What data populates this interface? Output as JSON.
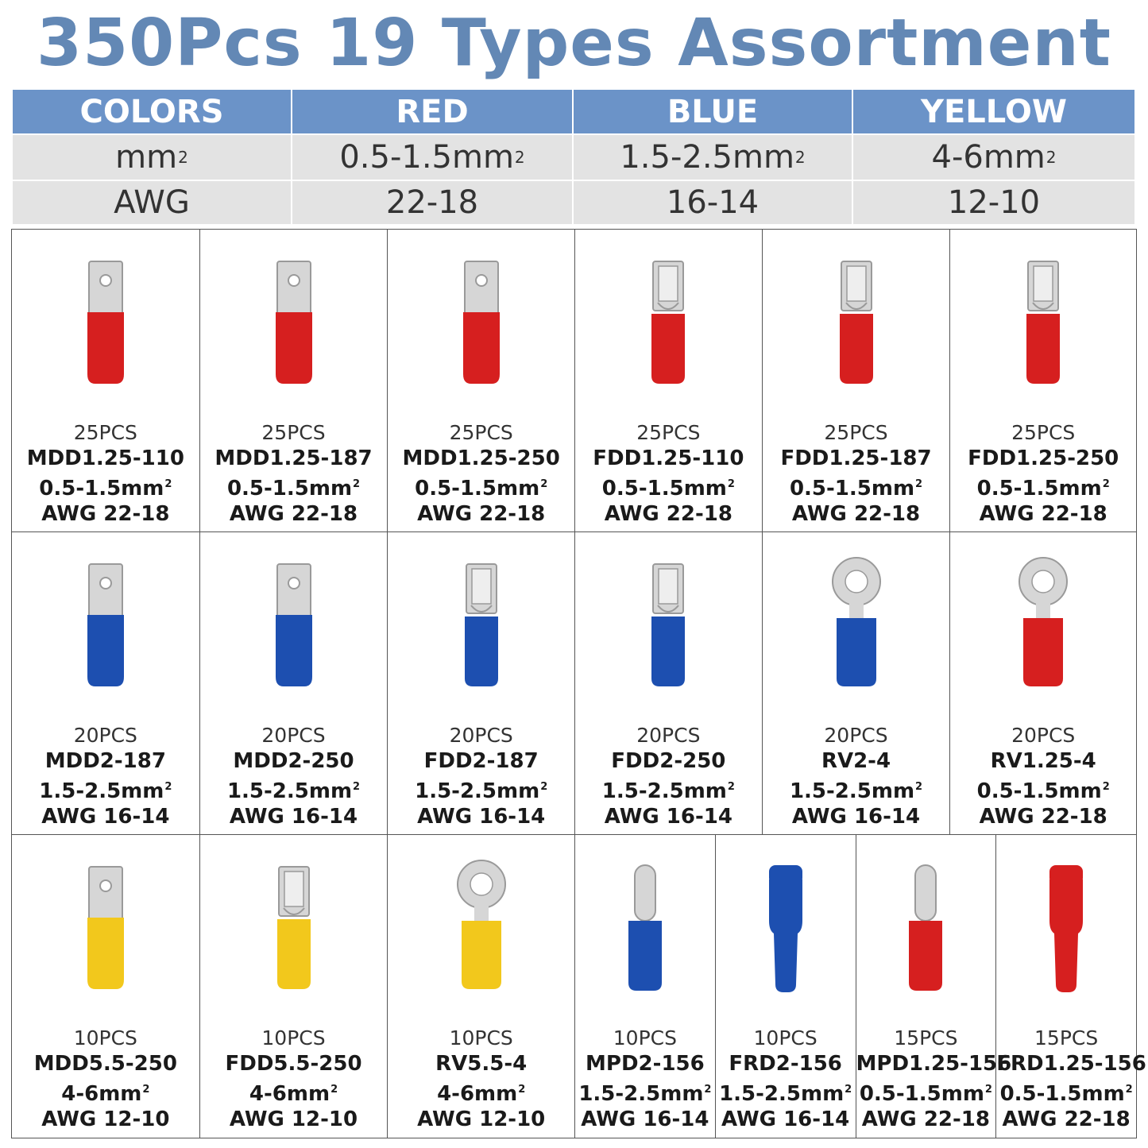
{
  "title": "350Pcs 19 Types Assortment",
  "colors": {
    "red": "#d61f1f",
    "blue": "#1d4fb0",
    "yellow": "#f2c81c",
    "header": "#6b93c8",
    "title": "#6388b5"
  },
  "spec_table": {
    "header": [
      "COLORS",
      "RED",
      "BLUE",
      "YELLOW"
    ],
    "mm_row": {
      "label": "mm",
      "values": [
        "0.5-1.5mm",
        "1.5-2.5mm",
        "4-6mm"
      ]
    },
    "awg_row": {
      "label": "AWG",
      "values": [
        "22-18",
        "16-14",
        "12-10"
      ]
    },
    "superscript": "2"
  },
  "terminals": [
    [
      {
        "qty": "25PCS",
        "model": "MDD1.25-110",
        "range": "0.5-1.5mm",
        "awg": "AWG 22-18",
        "shape": "male-spade",
        "color": "red"
      },
      {
        "qty": "25PCS",
        "model": "MDD1.25-187",
        "range": "0.5-1.5mm",
        "awg": "AWG 22-18",
        "shape": "male-spade",
        "color": "red"
      },
      {
        "qty": "25PCS",
        "model": "MDD1.25-250",
        "range": "0.5-1.5mm",
        "awg": "AWG 22-18",
        "shape": "male-spade",
        "color": "red"
      },
      {
        "qty": "25PCS",
        "model": "FDD1.25-110",
        "range": "0.5-1.5mm",
        "awg": "AWG 22-18",
        "shape": "female-spade",
        "color": "red"
      },
      {
        "qty": "25PCS",
        "model": "FDD1.25-187",
        "range": "0.5-1.5mm",
        "awg": "AWG 22-18",
        "shape": "female-spade",
        "color": "red"
      },
      {
        "qty": "25PCS",
        "model": "FDD1.25-250",
        "range": "0.5-1.5mm",
        "awg": "AWG 22-18",
        "shape": "female-spade",
        "color": "red"
      }
    ],
    [
      {
        "qty": "20PCS",
        "model": "MDD2-187",
        "range": "1.5-2.5mm",
        "awg": "AWG 16-14",
        "shape": "male-spade",
        "color": "blue"
      },
      {
        "qty": "20PCS",
        "model": "MDD2-250",
        "range": "1.5-2.5mm",
        "awg": "AWG 16-14",
        "shape": "male-spade",
        "color": "blue"
      },
      {
        "qty": "20PCS",
        "model": "FDD2-187",
        "range": "1.5-2.5mm",
        "awg": "AWG 16-14",
        "shape": "female-spade",
        "color": "blue"
      },
      {
        "qty": "20PCS",
        "model": "FDD2-250",
        "range": "1.5-2.5mm",
        "awg": "AWG 16-14",
        "shape": "female-spade",
        "color": "blue"
      },
      {
        "qty": "20PCS",
        "model": "RV2-4",
        "range": "1.5-2.5mm",
        "awg": "AWG 16-14",
        "shape": "ring",
        "color": "blue"
      },
      {
        "qty": "20PCS",
        "model": "RV1.25-4",
        "range": "0.5-1.5mm",
        "awg": "AWG 22-18",
        "shape": "ring",
        "color": "red"
      }
    ],
    [
      {
        "qty": "10PCS",
        "model": "MDD5.5-250",
        "range": "4-6mm",
        "awg": "AWG 12-10",
        "shape": "male-spade",
        "color": "yellow"
      },
      {
        "qty": "10PCS",
        "model": "FDD5.5-250",
        "range": "4-6mm",
        "awg": "AWG 12-10",
        "shape": "female-spade",
        "color": "yellow"
      },
      {
        "qty": "10PCS",
        "model": "RV5.5-4",
        "range": "4-6mm",
        "awg": "AWG 12-10",
        "shape": "ring",
        "color": "yellow"
      },
      {
        "qty": "10PCS",
        "model": "MPD2-156",
        "range": "1.5-2.5mm",
        "awg": "AWG 16-14",
        "shape": "bullet-male",
        "color": "blue"
      },
      {
        "qty": "10PCS",
        "model": "FRD2-156",
        "range": "1.5-2.5mm",
        "awg": "AWG 16-14",
        "shape": "bullet-female",
        "color": "blue"
      },
      {
        "qty": "15PCS",
        "model": "MPD1.25-156",
        "range": "0.5-1.5mm",
        "awg": "AWG 22-18",
        "shape": "bullet-male",
        "color": "red"
      },
      {
        "qty": "15PCS",
        "model": "FRD1.25-156",
        "range": "0.5-1.5mm",
        "awg": "AWG 22-18",
        "shape": "bullet-female",
        "color": "red"
      }
    ]
  ]
}
